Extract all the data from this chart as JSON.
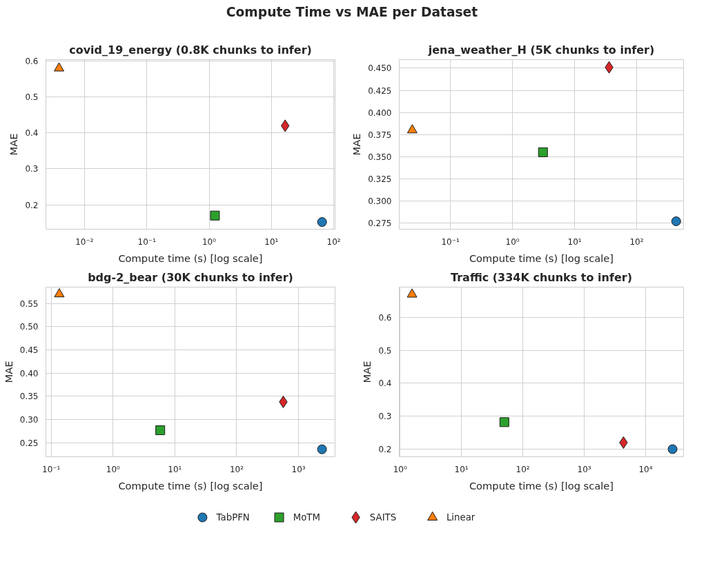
{
  "chart_data": [
    {
      "type": "scatter",
      "title": "covid_19_energy (0.8K chunks to infer)",
      "annotations": [
        "Compute Time vs MAE per Dataset"
      ],
      "xlabel": "Compute time (s) [log scale]",
      "ylabel": "MAE",
      "log": "x",
      "grid": true,
      "legend": "bottom",
      "xlim": [
        0.0024,
        105
      ],
      "xticks": [
        {
          "value": 0.01,
          "label": "10⁻²"
        },
        {
          "value": 0.1,
          "label": "10⁻¹"
        },
        {
          "value": 1,
          "label": "10⁰"
        },
        {
          "value": 10,
          "label": "10¹"
        },
        {
          "value": 100,
          "label": "10²"
        }
      ],
      "ylim": [
        0.132,
        0.604
      ],
      "yticks": [
        0.2,
        0.3,
        0.4,
        0.5,
        0.6
      ],
      "series": [
        {
          "name": "TabPFN",
          "color": "#1f77b4",
          "marker": "circle",
          "x": [
            65
          ],
          "values": [
            0.152
          ]
        },
        {
          "name": "MoTM",
          "color": "#2ca02c",
          "marker": "square",
          "x": [
            1.24
          ],
          "values": [
            0.17
          ]
        },
        {
          "name": "SAITS",
          "color": "#d62728",
          "marker": "diamond",
          "x": [
            16.6
          ],
          "values": [
            0.42
          ]
        },
        {
          "name": "Linear",
          "color": "#ff7f0e",
          "marker": "triangle",
          "x": [
            0.0039
          ],
          "values": [
            0.58
          ]
        }
      ]
    },
    {
      "type": "scatter",
      "title": "jena_weather_H (5K chunks to infer)",
      "xlabel": "Compute time (s) [log scale]",
      "ylabel": "MAE",
      "log": "x",
      "grid": true,
      "legend": "bottom",
      "xlim": [
        0.015,
        570
      ],
      "xticks": [
        {
          "value": 0.1,
          "label": "10⁻¹"
        },
        {
          "value": 1,
          "label": "10⁰"
        },
        {
          "value": 10,
          "label": "10¹"
        },
        {
          "value": 100,
          "label": "10²"
        }
      ],
      "ylim": [
        0.268,
        0.4597
      ],
      "yticks": [
        {
          "value": 0.275,
          "label": "0.275"
        },
        {
          "value": 0.3,
          "label": "0.300"
        },
        {
          "value": 0.325,
          "label": "0.325"
        },
        {
          "value": 0.35,
          "label": "0.350"
        },
        {
          "value": 0.375,
          "label": "0.375"
        },
        {
          "value": 0.4,
          "label": "0.400"
        },
        {
          "value": 0.425,
          "label": "0.425"
        },
        {
          "value": 0.45,
          "label": "0.450"
        }
      ],
      "series": [
        {
          "name": "TabPFN",
          "color": "#1f77b4",
          "marker": "circle",
          "x": [
            433
          ],
          "values": [
            0.277
          ]
        },
        {
          "name": "MoTM",
          "color": "#2ca02c",
          "marker": "square",
          "x": [
            3.1
          ],
          "values": [
            0.355
          ]
        },
        {
          "name": "SAITS",
          "color": "#d62728",
          "marker": "diamond",
          "x": [
            36
          ],
          "values": [
            0.451
          ]
        },
        {
          "name": "Linear",
          "color": "#ff7f0e",
          "marker": "triangle",
          "x": [
            0.0243
          ],
          "values": [
            0.38
          ]
        }
      ]
    },
    {
      "type": "scatter",
      "title": "bdg-2_bear (30K chunks to infer)",
      "xlabel": "Compute time (s) [log scale]",
      "ylabel": "MAE",
      "log": "x",
      "grid": true,
      "legend": "bottom",
      "xlim": [
        0.082,
        3900
      ],
      "xticks": [
        {
          "value": 0.1,
          "label": "10⁻¹"
        },
        {
          "value": 1,
          "label": "10⁰"
        },
        {
          "value": 10,
          "label": "10¹"
        },
        {
          "value": 100,
          "label": "10²"
        },
        {
          "value": 1000,
          "label": "10³"
        }
      ],
      "ylim": [
        0.22,
        0.585
      ],
      "yticks": [
        {
          "value": 0.25,
          "label": "0.25"
        },
        {
          "value": 0.3,
          "label": "0.30"
        },
        {
          "value": 0.35,
          "label": "0.35"
        },
        {
          "value": 0.4,
          "label": "0.40"
        },
        {
          "value": 0.45,
          "label": "0.45"
        },
        {
          "value": 0.5,
          "label": "0.50"
        },
        {
          "value": 0.55,
          "label": "0.55"
        }
      ],
      "series": [
        {
          "name": "TabPFN",
          "color": "#1f77b4",
          "marker": "circle",
          "x": [
            2400
          ],
          "values": [
            0.236
          ]
        },
        {
          "name": "MoTM",
          "color": "#2ca02c",
          "marker": "square",
          "x": [
            5.8
          ],
          "values": [
            0.277
          ]
        },
        {
          "name": "SAITS",
          "color": "#d62728",
          "marker": "diamond",
          "x": [
            567
          ],
          "values": [
            0.338
          ]
        },
        {
          "name": "Linear",
          "color": "#ff7f0e",
          "marker": "triangle",
          "x": [
            0.135
          ],
          "values": [
            0.57
          ]
        }
      ]
    },
    {
      "type": "scatter",
      "title": "Traffic (334K chunks to infer)",
      "xlabel": "Compute time (s) [log scale]",
      "ylabel": "MAE",
      "log": "x",
      "grid": true,
      "legend": "bottom",
      "xlim": [
        0.97,
        41500
      ],
      "xticks": [
        {
          "value": 1,
          "label": "10⁰"
        },
        {
          "value": 10,
          "label": "10¹"
        },
        {
          "value": 100,
          "label": "10²"
        },
        {
          "value": 1000,
          "label": "10³"
        },
        {
          "value": 10000,
          "label": "10⁴"
        }
      ],
      "ylim": [
        0.177,
        0.692
      ],
      "yticks": [
        0.2,
        0.3,
        0.4,
        0.5,
        0.6
      ],
      "series": [
        {
          "name": "TabPFN",
          "color": "#1f77b4",
          "marker": "circle",
          "x": [
            27500
          ],
          "values": [
            0.2
          ]
        },
        {
          "name": "MoTM",
          "color": "#2ca02c",
          "marker": "square",
          "x": [
            50
          ],
          "values": [
            0.282
          ]
        },
        {
          "name": "SAITS",
          "color": "#d62728",
          "marker": "diamond",
          "x": [
            4360
          ],
          "values": [
            0.22
          ]
        },
        {
          "name": "Linear",
          "color": "#ff7f0e",
          "marker": "triangle",
          "x": [
            1.57
          ],
          "values": [
            0.67
          ]
        }
      ]
    }
  ]
}
